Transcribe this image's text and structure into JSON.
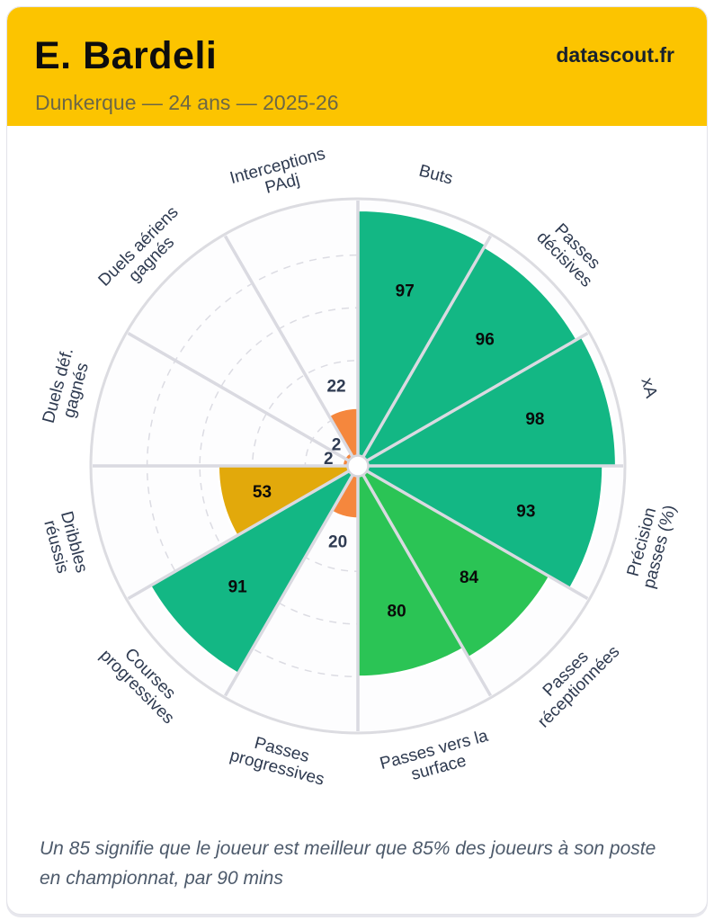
{
  "header": {
    "title": "E. Bardeli",
    "subtitle": "Dunkerque — 24 ans — 2025-26",
    "brand": "datascout.fr"
  },
  "footer": {
    "note": "Un 85 signifie que le joueur est meilleur que 85% des joueurs à son poste en championnat, par 90 mins"
  },
  "colors": {
    "header_bg": "#fcc400",
    "title": "#0d0d0d",
    "subtitle": "#6c6746",
    "brand": "#17212e",
    "footnote": "#4d5a6b",
    "green": "#13b784",
    "light_green": "#2bc455",
    "gold": "#e2a90b",
    "orange": "#f5873d",
    "category_label": "#2e3a50",
    "value_inside": "#0a0a0a",
    "value_outside": "#2f3b52",
    "grid_dashed": "#dcdce3",
    "spoke": "#dadae1",
    "outer_ring": "#dcdce1",
    "center_dot_stroke": "#d6d6dc"
  },
  "chart_data": {
    "type": "bar",
    "subtype": "pizza-polar-percentile",
    "scale": [
      0,
      100
    ],
    "grid": "dashed concentric rings",
    "grid_rings": [
      20,
      40,
      60,
      80
    ],
    "legend_position": "none",
    "categories": [
      "Buts",
      "Passes\ndécisives",
      "xA",
      "Précision\npasses (%)",
      "Passes\nréceptionnées",
      "Passes vers la\nsurface",
      "Passes\nprogressives",
      "Courses\nprogressives",
      "Dribbles\nréussis",
      "Duels déf.\ngagnés",
      "Duels aériens\ngagnés",
      "Interceptions\nPAdj"
    ],
    "values": [
      97,
      96,
      98,
      93,
      84,
      80,
      20,
      91,
      53,
      2,
      2,
      22
    ],
    "slice_colors": [
      "#13b784",
      "#13b784",
      "#13b784",
      "#13b784",
      "#2bc455",
      "#2bc455",
      "#f5873d",
      "#13b784",
      "#e2a90b",
      "#f5873d",
      "#f5873d",
      "#f5873d"
    ]
  }
}
